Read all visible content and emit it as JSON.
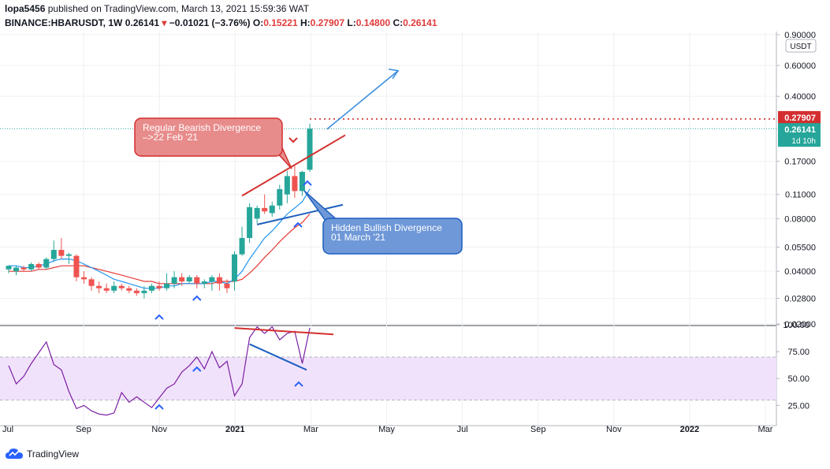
{
  "header": {
    "publisher": "lopa5456",
    "published_text": "published on TradingView.com, March 13, 2021 15:59:36 WAT",
    "symbol": "BINANCE:HBARUSDT, 1W",
    "last": "0.26141",
    "change": "−0.01021 (−3.76%)",
    "o_label": "O:",
    "o_value": "0.15221",
    "h_label": "H:",
    "h_value": "0.27907",
    "l_label": "L:",
    "l_value": "0.14800",
    "c_label": "C:",
    "c_value": "0.26141"
  },
  "chart_data": {
    "type": "candlestick",
    "scale": "log",
    "currency": "USDT",
    "ylim": [
      0.02,
      0.9
    ],
    "price_ticks": [
      "0.90000",
      "0.60000",
      "0.40000",
      "0.27907",
      "0.26141",
      "0.17000",
      "0.11000",
      "0.08000",
      "0.05500",
      "0.04000",
      "0.02800",
      "0.02000"
    ],
    "price_ticks_plain": [
      "0.90000",
      "0.60000",
      "0.40000",
      "0.17000",
      "0.11000",
      "0.08000",
      "0.05500",
      "0.04000",
      "0.02800",
      "0.02000"
    ],
    "high_marker": "0.27907",
    "last_marker": "0.26141",
    "countdown": "1d 10h",
    "x_ticks": [
      "Jul",
      "Sep",
      "Nov",
      "2021",
      "Mar",
      "May",
      "Jul",
      "Sep",
      "Nov",
      "2022",
      "Mar"
    ],
    "candles": [
      {
        "o": 0.041,
        "h": 0.043,
        "l": 0.039,
        "c": 0.043
      },
      {
        "o": 0.04,
        "h": 0.043,
        "l": 0.038,
        "c": 0.042
      },
      {
        "o": 0.042,
        "h": 0.043,
        "l": 0.04,
        "c": 0.041
      },
      {
        "o": 0.041,
        "h": 0.045,
        "l": 0.04,
        "c": 0.044
      },
      {
        "o": 0.044,
        "h": 0.045,
        "l": 0.041,
        "c": 0.042
      },
      {
        "o": 0.042,
        "h": 0.048,
        "l": 0.041,
        "c": 0.047
      },
      {
        "o": 0.047,
        "h": 0.06,
        "l": 0.045,
        "c": 0.053
      },
      {
        "o": 0.053,
        "h": 0.062,
        "l": 0.047,
        "c": 0.049
      },
      {
        "o": 0.049,
        "h": 0.051,
        "l": 0.044,
        "c": 0.05
      },
      {
        "o": 0.049,
        "h": 0.05,
        "l": 0.035,
        "c": 0.037
      },
      {
        "o": 0.037,
        "h": 0.04,
        "l": 0.034,
        "c": 0.036
      },
      {
        "o": 0.036,
        "h": 0.037,
        "l": 0.031,
        "c": 0.033
      },
      {
        "o": 0.033,
        "h": 0.035,
        "l": 0.03,
        "c": 0.032
      },
      {
        "o": 0.032,
        "h": 0.034,
        "l": 0.03,
        "c": 0.031
      },
      {
        "o": 0.031,
        "h": 0.035,
        "l": 0.03,
        "c": 0.033
      },
      {
        "o": 0.033,
        "h": 0.034,
        "l": 0.031,
        "c": 0.032
      },
      {
        "o": 0.032,
        "h": 0.033,
        "l": 0.03,
        "c": 0.031
      },
      {
        "o": 0.031,
        "h": 0.032,
        "l": 0.029,
        "c": 0.03
      },
      {
        "o": 0.03,
        "h": 0.033,
        "l": 0.028,
        "c": 0.031
      },
      {
        "o": 0.031,
        "h": 0.034,
        "l": 0.03,
        "c": 0.033
      },
      {
        "o": 0.033,
        "h": 0.035,
        "l": 0.031,
        "c": 0.032
      },
      {
        "o": 0.032,
        "h": 0.039,
        "l": 0.031,
        "c": 0.034
      },
      {
        "o": 0.034,
        "h": 0.04,
        "l": 0.032,
        "c": 0.037
      },
      {
        "o": 0.037,
        "h": 0.039,
        "l": 0.033,
        "c": 0.035
      },
      {
        "o": 0.035,
        "h": 0.038,
        "l": 0.034,
        "c": 0.037
      },
      {
        "o": 0.037,
        "h": 0.038,
        "l": 0.032,
        "c": 0.034
      },
      {
        "o": 0.034,
        "h": 0.036,
        "l": 0.032,
        "c": 0.035
      },
      {
        "o": 0.035,
        "h": 0.038,
        "l": 0.031,
        "c": 0.037
      },
      {
        "o": 0.037,
        "h": 0.039,
        "l": 0.031,
        "c": 0.034
      },
      {
        "o": 0.034,
        "h": 0.036,
        "l": 0.03,
        "c": 0.032
      },
      {
        "o": 0.035,
        "h": 0.052,
        "l": 0.031,
        "c": 0.05
      },
      {
        "o": 0.05,
        "h": 0.072,
        "l": 0.049,
        "c": 0.062
      },
      {
        "o": 0.062,
        "h": 0.098,
        "l": 0.058,
        "c": 0.093
      },
      {
        "o": 0.08,
        "h": 0.095,
        "l": 0.075,
        "c": 0.092
      },
      {
        "o": 0.092,
        "h": 0.11,
        "l": 0.085,
        "c": 0.088
      },
      {
        "o": 0.086,
        "h": 0.1,
        "l": 0.082,
        "c": 0.095
      },
      {
        "o": 0.095,
        "h": 0.125,
        "l": 0.09,
        "c": 0.118
      },
      {
        "o": 0.11,
        "h": 0.15,
        "l": 0.098,
        "c": 0.14
      },
      {
        "o": 0.14,
        "h": 0.16,
        "l": 0.105,
        "c": 0.115
      },
      {
        "o": 0.115,
        "h": 0.15,
        "l": 0.108,
        "c": 0.148
      },
      {
        "o": 0.15221,
        "h": 0.27907,
        "l": 0.148,
        "c": 0.26141
      }
    ],
    "ma_fast": [
      0.043,
      0.043,
      0.042,
      0.042,
      0.043,
      0.044,
      0.046,
      0.047,
      0.047,
      0.046,
      0.044,
      0.042,
      0.04,
      0.038,
      0.036,
      0.035,
      0.034,
      0.033,
      0.032,
      0.032,
      0.032,
      0.033,
      0.033,
      0.034,
      0.034,
      0.034,
      0.034,
      0.035,
      0.035,
      0.034,
      0.036,
      0.04,
      0.047,
      0.054,
      0.062,
      0.068,
      0.076,
      0.085,
      0.092,
      0.1,
      0.118
    ],
    "ma_slow": [
      0.04,
      0.04,
      0.04,
      0.04,
      0.041,
      0.041,
      0.042,
      0.043,
      0.043,
      0.043,
      0.043,
      0.042,
      0.041,
      0.04,
      0.039,
      0.038,
      0.037,
      0.036,
      0.035,
      0.035,
      0.034,
      0.034,
      0.034,
      0.034,
      0.034,
      0.034,
      0.034,
      0.034,
      0.035,
      0.035,
      0.035,
      0.036,
      0.039,
      0.043,
      0.048,
      0.053,
      0.059,
      0.065,
      0.071,
      0.076,
      0.085
    ],
    "rsi": {
      "range": [
        15,
        100
      ],
      "bands": [
        30,
        70
      ],
      "ticks": [
        "100.00",
        "75.00",
        "50.00",
        "25.00"
      ],
      "values": [
        62,
        45,
        52,
        64,
        74,
        84,
        63,
        58,
        38,
        22,
        25,
        20,
        17,
        16,
        18,
        37,
        28,
        33,
        28,
        23,
        32,
        41,
        45,
        56,
        62,
        70,
        59,
        75,
        60,
        66,
        34,
        45,
        88,
        98,
        92,
        98,
        86,
        92,
        94,
        64,
        97
      ]
    },
    "annotations": {
      "bearish_label": "Regular Bearish Divergence\n–>22 Feb '21",
      "bullish_label": "Hidden Bullish Divergence\n01 March '21"
    }
  },
  "footer": {
    "brand": "TradingView"
  }
}
